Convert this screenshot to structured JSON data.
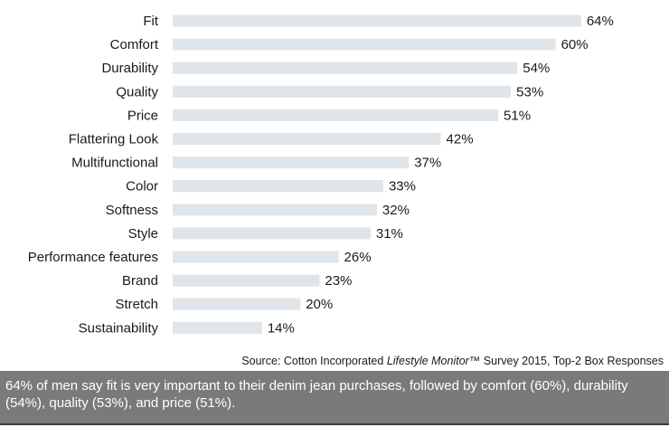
{
  "chart_data": {
    "type": "bar",
    "orientation": "horizontal",
    "categories": [
      "Fit",
      "Comfort",
      "Durability",
      "Quality",
      "Price",
      "Flattering Look",
      "Multifunctional",
      "Color",
      "Softness",
      "Style",
      "Performance features",
      "Brand",
      "Stretch",
      "Sustainability"
    ],
    "values": [
      64,
      60,
      54,
      53,
      51,
      42,
      37,
      33,
      32,
      31,
      26,
      23,
      20,
      14
    ],
    "value_suffix": "%",
    "xlim": [
      0,
      70
    ],
    "grid": false,
    "legend": "none"
  },
  "source": {
    "prefix": "Source: Cotton Incorporated ",
    "italic": "Lifestyle Monitor",
    "suffix": "™ Survey 2015, Top-2 Box Responses"
  },
  "caption": "64% of men say fit is very important to their denim jean purchases, followed by comfort (60%), durability (54%), quality (53%), and price (51%).",
  "colors": {
    "bar": "#dfe5e9",
    "caption_bg": "#7a7a7a",
    "caption_text": "#ffffff"
  }
}
